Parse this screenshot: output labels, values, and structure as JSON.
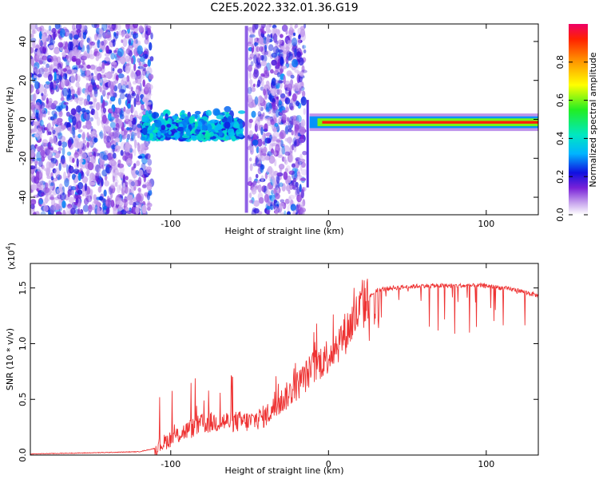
{
  "title": "C2E5.2022.332.01.36.G19",
  "chart_data": [
    {
      "type": "heatmap",
      "xlabel": "Height of straight line (km)",
      "ylabel": "Frequency (Hz)",
      "xlim": [
        -189,
        133
      ],
      "ylim": [
        -49,
        49
      ],
      "xticks": [
        -100,
        0,
        100
      ],
      "yticks": [
        -40,
        -20,
        0,
        20,
        40
      ],
      "colorbar": {
        "label": "Normalized spectral amplitude",
        "range": [
          0,
          1
        ],
        "ticks": [
          0.0,
          0.2,
          0.4,
          0.6,
          0.8
        ]
      },
      "features": [
        {
          "x_range": [
            -189,
            -112
          ],
          "freq_range": [
            -49,
            49
          ],
          "amplitude_range": [
            0.05,
            0.3
          ]
        },
        {
          "x_range": [
            -118,
            -55
          ],
          "freq_range": [
            -10,
            6
          ],
          "amplitude_range": [
            0.2,
            0.45
          ]
        },
        {
          "x_range": [
            -50,
            -15
          ],
          "freq_range": [
            -49,
            49
          ],
          "amplitude_range": [
            0.05,
            0.3
          ]
        },
        {
          "x_range": [
            -12,
            133
          ],
          "freq_range": [
            -3,
            1
          ],
          "amplitude_range": [
            0.6,
            1.0
          ]
        }
      ]
    },
    {
      "type": "line",
      "xlabel": "Height of straight line (km)",
      "ylabel": "SNR (10 * v/v)",
      "yunit": "(x10",
      "yexp": "4",
      "xlim": [
        -189,
        133
      ],
      "ylim": [
        0,
        1.72
      ],
      "xticks": [
        -100,
        0,
        100
      ],
      "yticks": [
        0.0,
        0.5,
        1.0,
        1.5
      ],
      "ytick_labels": [
        "0.0",
        "0.5",
        "1.0",
        "1.5"
      ],
      "series": [
        {
          "color": "#ee3333",
          "x": [
            -189,
            -150,
            -120,
            -110,
            -100,
            -90,
            -80,
            -70,
            -60,
            -50,
            -40,
            -30,
            -20,
            -10,
            0,
            10,
            20,
            25,
            30,
            40,
            60,
            80,
            100,
            120,
            133
          ],
          "y": [
            0.01,
            0.02,
            0.03,
            0.06,
            0.15,
            0.22,
            0.28,
            0.3,
            0.3,
            0.3,
            0.35,
            0.48,
            0.62,
            0.78,
            0.9,
            1.08,
            1.3,
            1.4,
            1.48,
            1.5,
            1.52,
            1.52,
            1.52,
            1.48,
            1.43
          ]
        }
      ]
    }
  ]
}
